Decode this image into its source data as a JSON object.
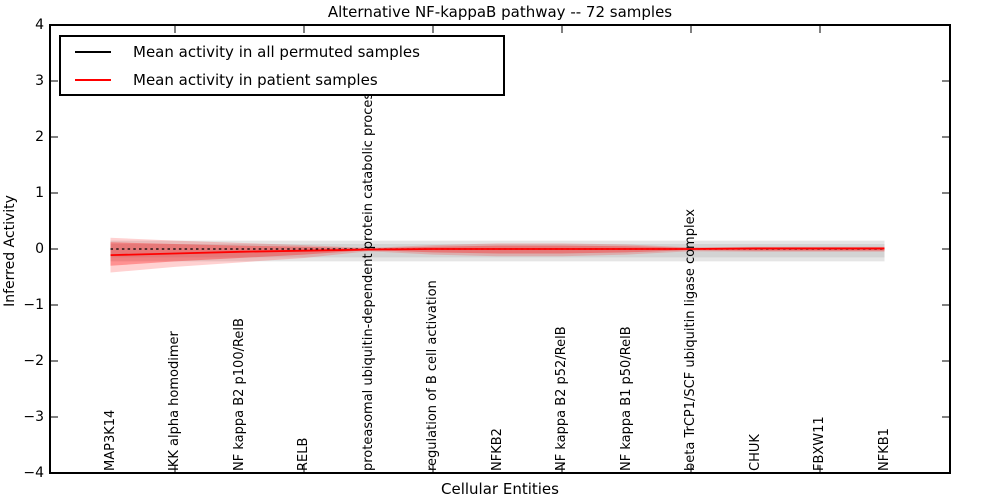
{
  "title": "Alternative NF-kappaB pathway -- 72 samples",
  "axes": {
    "ylabel": "Inferred Activity",
    "xlabel": "Cellular Entities",
    "ytick_labels": [
      "4",
      "3",
      "2",
      "1",
      "0",
      "−1",
      "−2",
      "−3",
      "−4"
    ]
  },
  "legend": {
    "items": [
      {
        "label": "Mean activity in all permuted samples",
        "color": "#000000"
      },
      {
        "label": "Mean activity in patient samples",
        "color": "#ff0000"
      }
    ]
  },
  "chart_data": {
    "type": "line",
    "title": "Alternative NF-kappaB pathway -- 72 samples",
    "xlabel": "Cellular Entities",
    "ylabel": "Inferred Activity",
    "ylim": [
      -4,
      4
    ],
    "yticks": [
      4,
      3,
      2,
      1,
      0,
      -1,
      -2,
      -3,
      -4
    ],
    "grid": false,
    "legend_position": "upper left",
    "categories": [
      "MAP3K14",
      "IKK alpha homodimer",
      "NF kappa B2 p100/RelB",
      "RELB",
      "proteasomal ubiquitin-dependent protein catabolic process",
      "regulation of B cell activation",
      "NFKB2",
      "NF kappa B2 p52/RelB",
      "NF kappa B1 p50/RelB",
      "beta TrCP1/SCF ubiquitin ligase complex",
      "CHUK",
      "FBXW11",
      "NFKB1"
    ],
    "series": [
      {
        "name": "Mean activity in all permuted samples",
        "color": "#000000",
        "style": "dotted",
        "values": [
          0,
          0,
          0,
          0,
          0,
          0,
          0,
          0,
          0,
          0,
          0,
          0,
          0
        ]
      },
      {
        "name": "Mean activity in patient samples",
        "color": "#ff0000",
        "style": "solid",
        "values": [
          -0.11,
          -0.08,
          -0.05,
          -0.03,
          -0.01,
          0,
          0,
          0,
          0,
          0,
          0.01,
          0.01,
          0.01
        ]
      }
    ],
    "bands": [
      {
        "name": "permuted-outer",
        "color": "#000000",
        "opacity": 0.1,
        "upper": [
          0.15,
          0.15,
          0.15,
          0.15,
          0.15,
          0.15,
          0.15,
          0.15,
          0.15,
          0.15,
          0.15,
          0.15,
          0.15
        ],
        "lower": [
          -0.22,
          -0.22,
          -0.22,
          -0.22,
          -0.22,
          -0.22,
          -0.22,
          -0.22,
          -0.22,
          -0.22,
          -0.22,
          -0.22,
          -0.22
        ]
      },
      {
        "name": "permuted-inner",
        "color": "#000000",
        "opacity": 0.08,
        "upper": [
          0.09,
          0.09,
          0.09,
          0.09,
          0.09,
          0.09,
          0.09,
          0.09,
          0.09,
          0.09,
          0.09,
          0.09,
          0.09
        ],
        "lower": [
          -0.15,
          -0.15,
          -0.15,
          -0.15,
          -0.15,
          -0.15,
          -0.15,
          -0.15,
          -0.15,
          -0.15,
          -0.15,
          -0.15,
          -0.15
        ]
      },
      {
        "name": "patient-outer",
        "color": "#ff0000",
        "opacity": 0.18,
        "upper": [
          0.2,
          0.15,
          0.11,
          0.07,
          0.02,
          0.07,
          0.1,
          0.1,
          0.08,
          0.03,
          0.04,
          0.04,
          0.04
        ],
        "lower": [
          -0.42,
          -0.32,
          -0.24,
          -0.16,
          -0.04,
          -0.1,
          -0.13,
          -0.13,
          -0.1,
          -0.04,
          -0.05,
          -0.05,
          -0.05
        ]
      },
      {
        "name": "patient-inner",
        "color": "#ff0000",
        "opacity": 0.3,
        "upper": [
          0.12,
          0.09,
          0.06,
          0.04,
          0.01,
          0.04,
          0.06,
          0.06,
          0.05,
          0.02,
          0.02,
          0.02,
          0.02
        ],
        "lower": [
          -0.3,
          -0.22,
          -0.16,
          -0.1,
          -0.02,
          -0.06,
          -0.08,
          -0.08,
          -0.06,
          -0.02,
          -0.03,
          -0.03,
          -0.03
        ]
      }
    ]
  }
}
